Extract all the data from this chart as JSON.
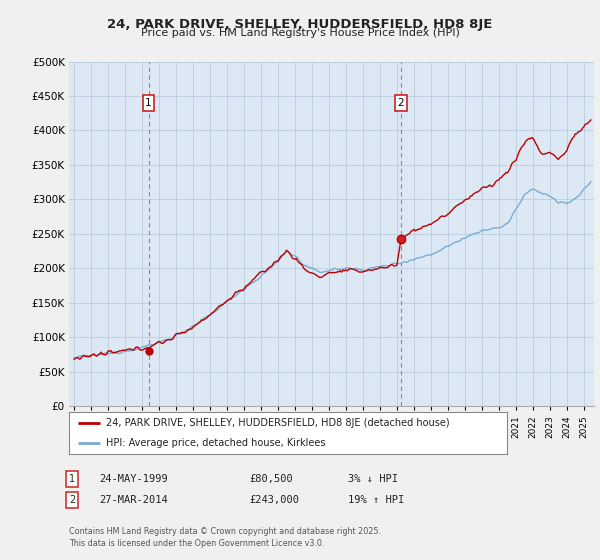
{
  "title_line1": "24, PARK DRIVE, SHELLEY, HUDDERSFIELD, HD8 8JE",
  "title_line2": "Price paid vs. HM Land Registry's House Price Index (HPI)",
  "ytick_labels": [
    "£0",
    "£50K",
    "£100K",
    "£150K",
    "£200K",
    "£250K",
    "£300K",
    "£350K",
    "£400K",
    "£450K",
    "£500K"
  ],
  "ytick_values": [
    0,
    50000,
    100000,
    150000,
    200000,
    250000,
    300000,
    350000,
    400000,
    450000,
    500000
  ],
  "ylim": [
    0,
    500000
  ],
  "background_color": "#f0f0f0",
  "plot_bg_color": "#dce9f5",
  "red_line_color": "#bb0000",
  "blue_line_color": "#7aadd4",
  "vline_color": "#dd6666",
  "grid_color": "#bbccdd",
  "annotation1": {
    "label": "1",
    "date": "24-MAY-1999",
    "price": "£80,500",
    "pct": "3% ↓ HPI"
  },
  "annotation2": {
    "label": "2",
    "date": "27-MAR-2014",
    "price": "£243,000",
    "pct": "19% ↑ HPI"
  },
  "legend_line1": "24, PARK DRIVE, SHELLEY, HUDDERSFIELD, HD8 8JE (detached house)",
  "legend_line2": "HPI: Average price, detached house, Kirklees",
  "footer": "Contains HM Land Registry data © Crown copyright and database right 2025.\nThis data is licensed under the Open Government Licence v3.0.",
  "sale1_year": 1999.38,
  "sale1_price": 80500,
  "sale2_year": 2014.24,
  "sale2_price": 243000,
  "xlim_left": 1994.7,
  "xlim_right": 2025.6
}
